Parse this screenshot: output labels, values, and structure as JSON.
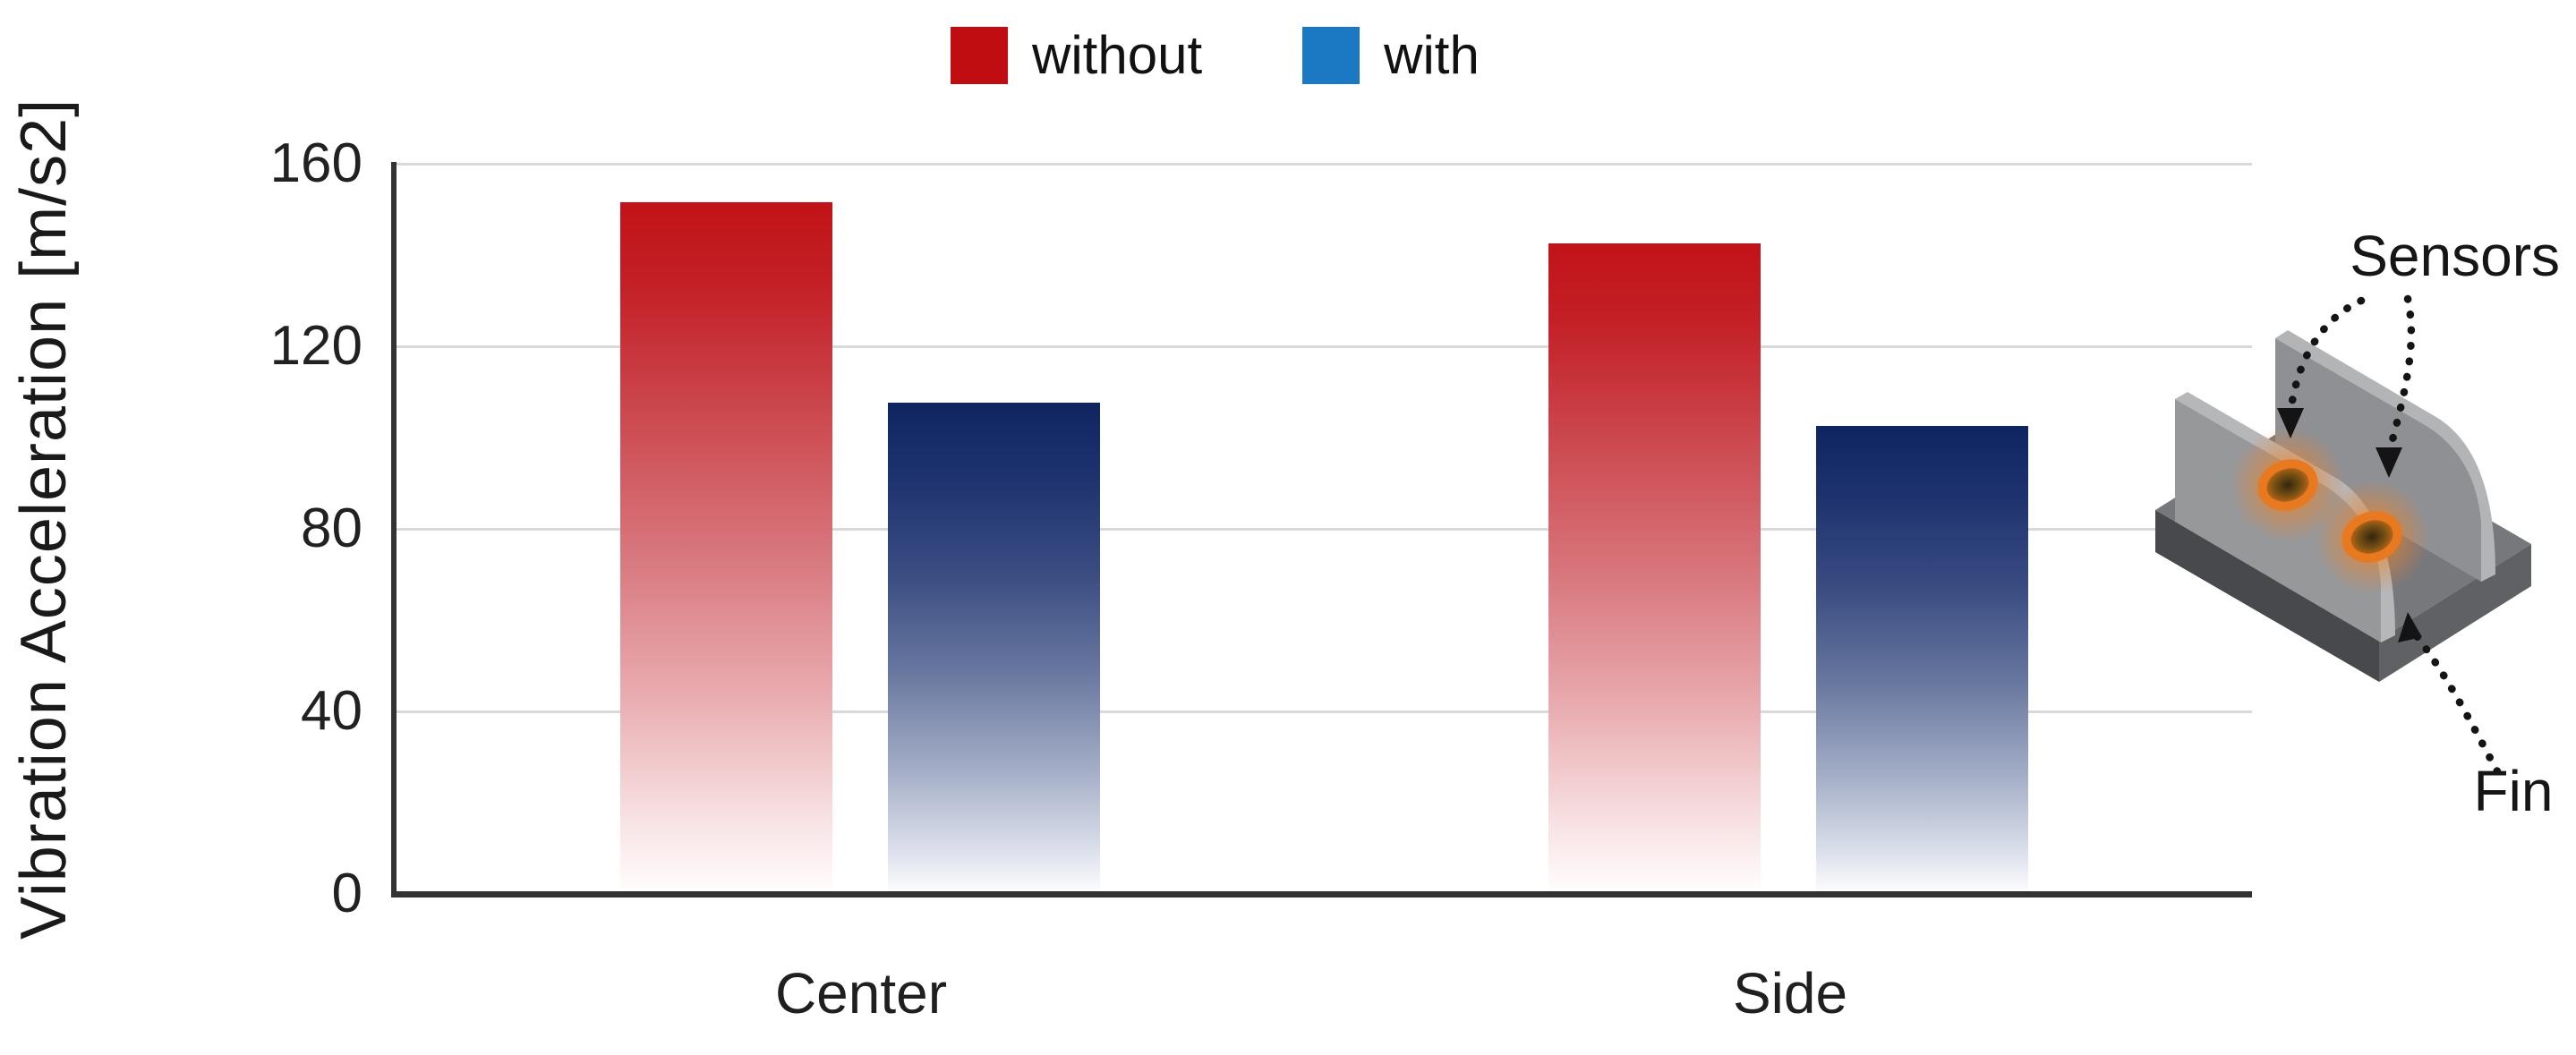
{
  "chart_data": {
    "type": "bar",
    "title": "",
    "categories": [
      "Center",
      "Side"
    ],
    "series": [
      {
        "name": "without",
        "values": [
          151,
          142
        ],
        "legend_color": "#c00d12",
        "bar_top_color": "#c11318"
      },
      {
        "name": "with",
        "values": [
          107,
          102
        ],
        "legend_color": "#1b78c2",
        "bar_top_color": "#0f2562"
      }
    ],
    "xlabel": "",
    "ylabel": "Vibration Acceleration [m/s2]",
    "ylim": [
      0,
      160
    ],
    "yticks": [
      160,
      120,
      80,
      40,
      0
    ],
    "grid": "horizontal",
    "gridline_color": "#d9d9d9",
    "axis_color": "#333333",
    "legend_position": "top-center",
    "bar_fill_style": "vertical gradient fading to white toward baseline"
  },
  "illustration": {
    "sensors_label": "Sensors",
    "fin_label": "Fin",
    "sensor_color": "#e8791f",
    "fin_color": "#97989a",
    "base_color": "#48494c"
  }
}
